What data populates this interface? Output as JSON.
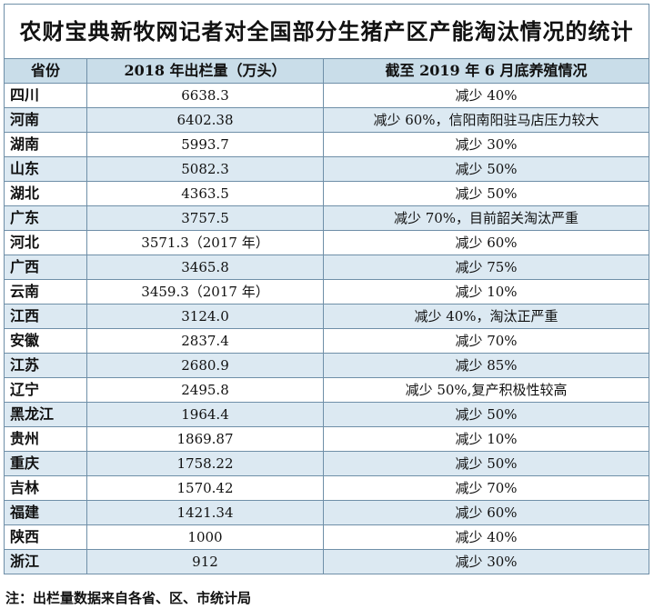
{
  "title": "农财宝典新牧网记者对全国部分生猪产区产能淘汰情况的统计",
  "headers": {
    "province": "省份",
    "output": "2018 年出栏量（万头）",
    "status": "截至 2019 年 6 月底养殖情况"
  },
  "rows": [
    {
      "province": "四川",
      "output": "6638.3",
      "status": "减少 40%"
    },
    {
      "province": "河南",
      "output": "6402.38",
      "status": "减少 60%，信阳南阳驻马店压力较大"
    },
    {
      "province": "湖南",
      "output": "5993.7",
      "status": "减少 30%"
    },
    {
      "province": "山东",
      "output": "5082.3",
      "status": "减少 50%"
    },
    {
      "province": "湖北",
      "output": "4363.5",
      "status": "减少 50%"
    },
    {
      "province": "广东",
      "output": "3757.5",
      "status": "减少 70%，目前韶关淘汰严重"
    },
    {
      "province": "河北",
      "output": "3571.3（2017 年）",
      "status": "减少 60%"
    },
    {
      "province": "广西",
      "output": "3465.8",
      "status": "减少 75%"
    },
    {
      "province": "云南",
      "output": "3459.3（2017 年）",
      "status": "减少 10%"
    },
    {
      "province": "江西",
      "output": "3124.0",
      "status": "减少 40%，淘汰正严重"
    },
    {
      "province": "安徽",
      "output": "2837.4",
      "status": "减少 70%"
    },
    {
      "province": "江苏",
      "output": "2680.9",
      "status": "减少 85%"
    },
    {
      "province": "辽宁",
      "output": "2495.8",
      "status": "减少 50%,复产积极性较高"
    },
    {
      "province": "黑龙江",
      "output": "1964.4",
      "status": "减少 50%"
    },
    {
      "province": "贵州",
      "output": "1869.87",
      "status": "减少 10%"
    },
    {
      "province": "重庆",
      "output": "1758.22",
      "status": "减少 50%"
    },
    {
      "province": "吉林",
      "output": "1570.42",
      "status": "减少 70%"
    },
    {
      "province": "福建",
      "output": "1421.34",
      "status": "减少 60%"
    },
    {
      "province": "陕西",
      "output": "1000",
      "status": "减少 40%"
    },
    {
      "province": "浙江",
      "output": "912",
      "status": "减少 30%"
    }
  ],
  "note": "注：出栏量数据来自各省、区、市统计局",
  "colors": {
    "header_bg": "#c9dde9",
    "stripe_bg": "#dce9f2",
    "border": "#6f8fa8"
  }
}
